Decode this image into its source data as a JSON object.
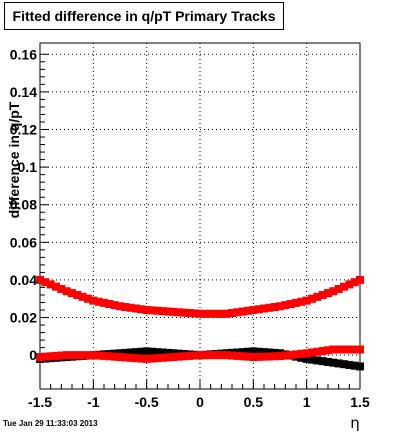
{
  "chart_data": {
    "type": "scatter",
    "title": "Fitted difference in q/pT  Primary Tracks",
    "xlabel": "η",
    "ylabel": "difference in q/pT",
    "xlim": [
      -1.5,
      1.5
    ],
    "ylim": [
      -0.018,
      0.166
    ],
    "x_ticks": [
      "-1.5",
      "-1",
      "-0.5",
      "0",
      "0.5",
      "1",
      "1.5"
    ],
    "y_ticks": [
      "0",
      "0.02",
      "0.04",
      "0.06",
      "0.08",
      "0.1",
      "0.12",
      "0.14",
      "0.16"
    ],
    "grid": true,
    "colors": {
      "red": "#ff0000",
      "black": "#000000"
    },
    "series": [
      {
        "color": "#ff0000",
        "x": [
          -1.5,
          -1.25,
          -1.0,
          -0.75,
          -0.5,
          -0.25,
          0.0,
          0.25,
          0.5,
          0.75,
          1.0,
          1.25,
          1.5
        ],
        "y": [
          0.04,
          0.034,
          0.029,
          0.026,
          0.024,
          0.023,
          0.022,
          0.022,
          0.024,
          0.026,
          0.029,
          0.034,
          0.04
        ]
      },
      {
        "color": "#ff0000",
        "x": [
          -1.5,
          -1.25,
          -1.0,
          -0.75,
          -0.5,
          -0.25,
          0.0,
          0.25,
          0.5,
          0.75,
          1.0,
          1.25,
          1.5
        ],
        "y": [
          -0.001,
          0.0,
          0.0,
          -0.001,
          -0.002,
          -0.001,
          0.0,
          0.0,
          -0.001,
          -0.0005,
          0.001,
          0.003,
          0.003
        ]
      },
      {
        "color": "#000000",
        "x": [
          -1.5,
          -1.25,
          -1.0,
          -0.75,
          -0.5,
          -0.25,
          0.0,
          0.25,
          0.5,
          0.75,
          1.0,
          1.25,
          1.5
        ],
        "y": [
          -0.002,
          -0.001,
          0.0,
          0.001,
          0.002,
          0.001,
          0.0,
          0.001,
          0.002,
          0.001,
          -0.002,
          -0.004,
          -0.006
        ]
      }
    ]
  },
  "timestamp": "Tue Jan 29 11:33:03 2013"
}
